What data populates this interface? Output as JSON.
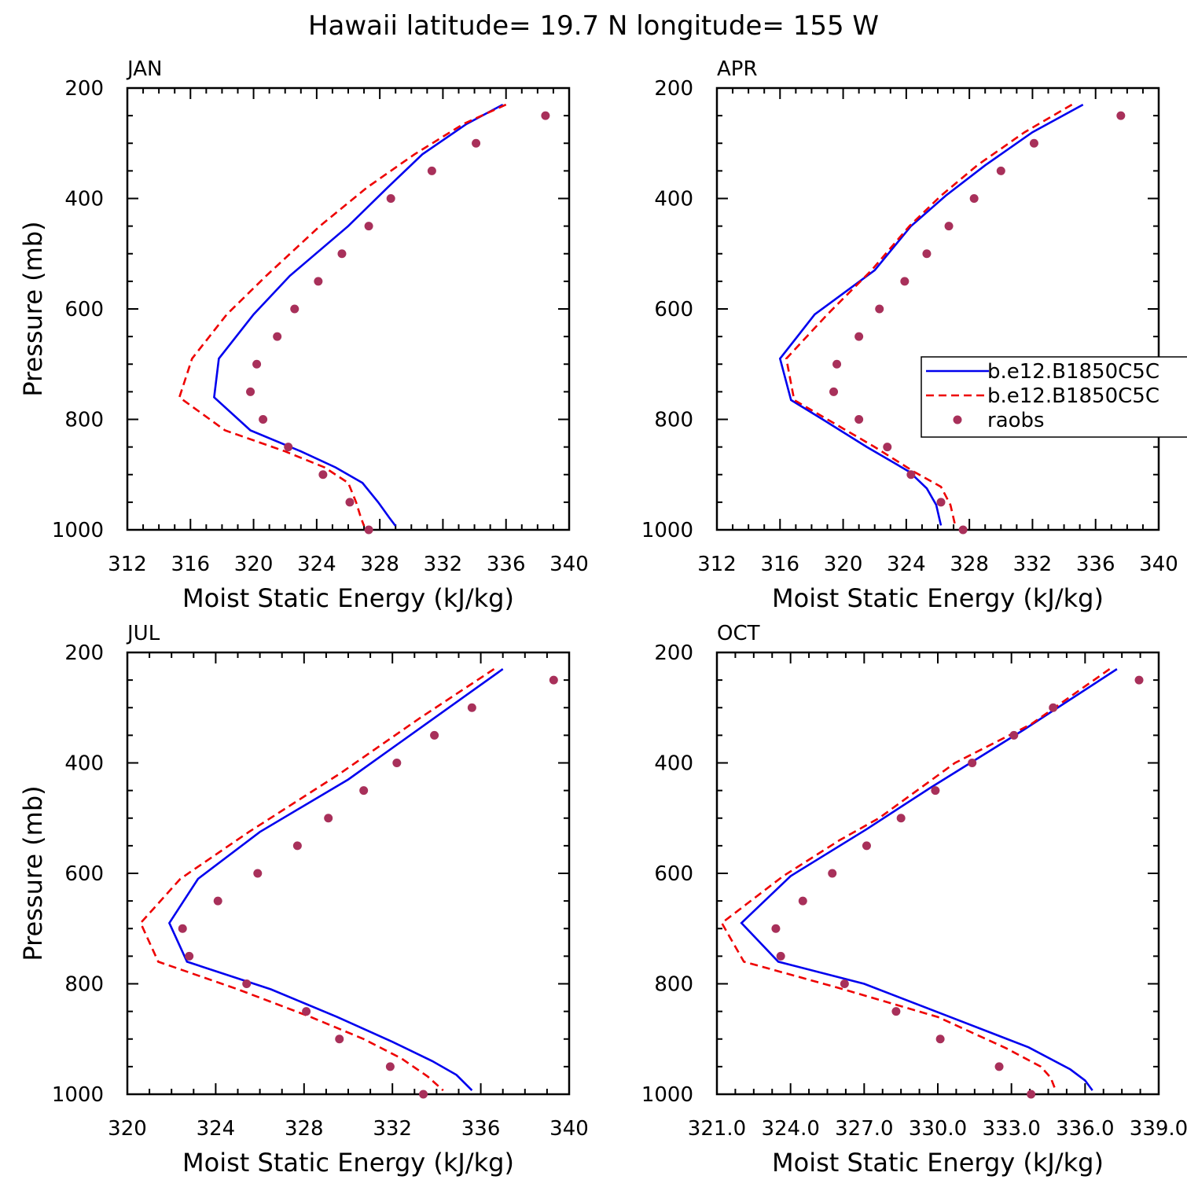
{
  "title": "Hawaii  latitude= 19.7 N longitude= 155 W",
  "legend": {
    "entries": [
      "b.e12.B1850C5C",
      "b.e12.B1850C5C",
      "raobs"
    ],
    "placement": "right side of APR panel (clipped at figure edge)"
  },
  "colors": {
    "model1": "#0000ee",
    "model2": "#ee0000",
    "raobs": "#a8305a"
  },
  "chart_data": [
    {
      "type": "line",
      "panel": "JAN",
      "xlabel": "Moist Static Energy (kJ/kg)",
      "ylabel": "Pressure (mb)",
      "xlim": [
        312,
        340
      ],
      "ylim": [
        200,
        1000
      ],
      "y_inverted": true,
      "xticks": [
        "312",
        "316",
        "320",
        "324",
        "328",
        "332",
        "336",
        "340"
      ],
      "yticks": [
        "200",
        "400",
        "600",
        "800",
        "1000"
      ],
      "series": [
        {
          "name": "b.e12.B1850C5C",
          "style": "solid",
          "points": [
            [
              335.8,
              230
            ],
            [
              333.5,
              265
            ],
            [
              330.7,
              320
            ],
            [
              328.5,
              380
            ],
            [
              326,
              450
            ],
            [
              322.3,
              540
            ],
            [
              320,
              610
            ],
            [
              317.8,
              690
            ],
            [
              317.5,
              760
            ],
            [
              319.8,
              820
            ],
            [
              323,
              858
            ],
            [
              325.2,
              887
            ],
            [
              326.9,
              915
            ],
            [
              327.9,
              950
            ],
            [
              328.6,
              978
            ],
            [
              329,
              993
            ]
          ]
        },
        {
          "name": "b.e12.B1850C5C",
          "style": "dashed",
          "points": [
            [
              336,
              230
            ],
            [
              333.3,
              265
            ],
            [
              330.2,
              320
            ],
            [
              327.2,
              380
            ],
            [
              324.2,
              450
            ],
            [
              320.8,
              540
            ],
            [
              318.3,
              610
            ],
            [
              316.1,
              690
            ],
            [
              315.3,
              760
            ],
            [
              318.2,
              820
            ],
            [
              322,
              858
            ],
            [
              324.5,
              887
            ],
            [
              326,
              915
            ],
            [
              326.5,
              950
            ],
            [
              326.8,
              978
            ],
            [
              327,
              993
            ]
          ]
        },
        {
          "name": "raobs",
          "style": "markers",
          "points": [
            [
              338.5,
              250
            ],
            [
              334.1,
              300
            ],
            [
              331.3,
              350
            ],
            [
              328.7,
              400
            ],
            [
              327.3,
              450
            ],
            [
              325.6,
              500
            ],
            [
              324.1,
              550
            ],
            [
              322.6,
              600
            ],
            [
              321.5,
              650
            ],
            [
              320.2,
              700
            ],
            [
              319.8,
              750
            ],
            [
              320.6,
              800
            ],
            [
              322.2,
              850
            ],
            [
              324.4,
              900
            ],
            [
              326.1,
              950
            ],
            [
              327.3,
              1000
            ]
          ]
        }
      ]
    },
    {
      "type": "line",
      "panel": "APR",
      "xlabel": "Moist Static Energy (kJ/kg)",
      "ylabel": "",
      "xlim": [
        312,
        340
      ],
      "ylim": [
        200,
        1000
      ],
      "y_inverted": true,
      "xticks": [
        "312",
        "316",
        "320",
        "324",
        "328",
        "332",
        "336",
        "340"
      ],
      "yticks": [
        "200",
        "400",
        "600",
        "800",
        "1000"
      ],
      "series": [
        {
          "name": "b.e12.B1850C5C",
          "style": "solid",
          "points": [
            [
              335.2,
              230
            ],
            [
              332,
              280
            ],
            [
              329,
              340
            ],
            [
              326.5,
              395
            ],
            [
              324.3,
              450
            ],
            [
              322,
              530
            ],
            [
              318.2,
              610
            ],
            [
              316,
              690
            ],
            [
              316.7,
              765
            ],
            [
              318.7,
              800
            ],
            [
              321.5,
              850
            ],
            [
              324.2,
              895
            ],
            [
              325.3,
              925
            ],
            [
              325.9,
              955
            ],
            [
              326.2,
              992
            ]
          ]
        },
        {
          "name": "b.e12.B1850C5C",
          "style": "dashed",
          "points": [
            [
              334.5,
              230
            ],
            [
              331.5,
              280
            ],
            [
              328.5,
              340
            ],
            [
              326.2,
              395
            ],
            [
              324.2,
              450
            ],
            [
              321.8,
              530
            ],
            [
              319,
              610
            ],
            [
              316.4,
              690
            ],
            [
              316.9,
              765
            ],
            [
              319,
              800
            ],
            [
              322,
              850
            ],
            [
              324.5,
              895
            ],
            [
              326.2,
              922
            ],
            [
              326.8,
              955
            ],
            [
              327.1,
              992
            ]
          ]
        },
        {
          "name": "raobs",
          "style": "markers",
          "points": [
            [
              337.6,
              250
            ],
            [
              332.1,
              300
            ],
            [
              330,
              350
            ],
            [
              328.3,
              400
            ],
            [
              326.7,
              450
            ],
            [
              325.3,
              500
            ],
            [
              323.9,
              550
            ],
            [
              322.3,
              600
            ],
            [
              321,
              650
            ],
            [
              319.6,
              700
            ],
            [
              319.4,
              750
            ],
            [
              321,
              800
            ],
            [
              322.8,
              850
            ],
            [
              324.3,
              900
            ],
            [
              326.2,
              950
            ],
            [
              327.6,
              1000
            ]
          ]
        }
      ]
    },
    {
      "type": "line",
      "panel": "JUL",
      "xlabel": "Moist Static Energy (kJ/kg)",
      "ylabel": "Pressure (mb)",
      "xlim": [
        320,
        340
      ],
      "ylim": [
        200,
        1000
      ],
      "y_inverted": true,
      "xticks": [
        "320",
        "324",
        "328",
        "332",
        "336",
        "340"
      ],
      "yticks": [
        "200",
        "400",
        "600",
        "800",
        "1000"
      ],
      "series": [
        {
          "name": "b.e12.B1850C5C",
          "style": "solid",
          "points": [
            [
              337,
              230
            ],
            [
              333.5,
              330
            ],
            [
              330,
              430
            ],
            [
              326,
              525
            ],
            [
              323.2,
              610
            ],
            [
              321.9,
              690
            ],
            [
              322.7,
              760
            ],
            [
              326.5,
              810
            ],
            [
              329.5,
              860
            ],
            [
              332,
              905
            ],
            [
              333.8,
              940
            ],
            [
              334.9,
              965
            ],
            [
              335.6,
              993
            ]
          ]
        },
        {
          "name": "b.e12.B1850C5C",
          "style": "dashed",
          "points": [
            [
              336.6,
              230
            ],
            [
              333.2,
              320
            ],
            [
              329.6,
              420
            ],
            [
              325.5,
              525
            ],
            [
              322.4,
              610
            ],
            [
              320.6,
              690
            ],
            [
              321.4,
              760
            ],
            [
              325,
              810
            ],
            [
              328.3,
              860
            ],
            [
              330.7,
              900
            ],
            [
              332.4,
              935
            ],
            [
              333.6,
              968
            ],
            [
              334.3,
              993
            ]
          ]
        },
        {
          "name": "raobs",
          "style": "markers",
          "points": [
            [
              339.3,
              250
            ],
            [
              335.6,
              300
            ],
            [
              333.9,
              350
            ],
            [
              332.2,
              400
            ],
            [
              330.7,
              450
            ],
            [
              329.1,
              500
            ],
            [
              327.7,
              550
            ],
            [
              325.9,
              600
            ],
            [
              324.1,
              650
            ],
            [
              322.5,
              700
            ],
            [
              322.8,
              750
            ],
            [
              325.4,
              800
            ],
            [
              328.1,
              850
            ],
            [
              329.6,
              900
            ],
            [
              331.9,
              950
            ],
            [
              333.4,
              1000
            ]
          ]
        }
      ]
    },
    {
      "type": "line",
      "panel": "OCT",
      "xlabel": "Moist Static Energy (kJ/kg)",
      "ylabel": "",
      "xlim": [
        321,
        339
      ],
      "ylim": [
        200,
        1000
      ],
      "y_inverted": true,
      "xticks": [
        "321.0",
        "324.0",
        "327.0",
        "330.0",
        "333.0",
        "336.0",
        "339.0"
      ],
      "yticks": [
        "200",
        "400",
        "600",
        "800",
        "1000"
      ],
      "series": [
        {
          "name": "b.e12.B1850C5C",
          "style": "solid",
          "points": [
            [
              337.3,
              230
            ],
            [
              333.5,
              340
            ],
            [
              329.7,
              445
            ],
            [
              327.1,
              520
            ],
            [
              324,
              605
            ],
            [
              322,
              690
            ],
            [
              323.5,
              760
            ],
            [
              327,
              800
            ],
            [
              330.5,
              860
            ],
            [
              333.7,
              915
            ],
            [
              335.4,
              955
            ],
            [
              336,
              975
            ],
            [
              336.3,
              993
            ]
          ]
        },
        {
          "name": "b.e12.B1850C5C",
          "style": "dashed",
          "points": [
            [
              337,
              230
            ],
            [
              333.8,
              330
            ],
            [
              330.7,
              400
            ],
            [
              327.6,
              500
            ],
            [
              326,
              540
            ],
            [
              323.7,
              605
            ],
            [
              321.2,
              690
            ],
            [
              322.1,
              760
            ],
            [
              326,
              808
            ],
            [
              330,
              860
            ],
            [
              332.8,
              917
            ],
            [
              334.2,
              950
            ],
            [
              334.6,
              970
            ],
            [
              334.8,
              993
            ]
          ]
        },
        {
          "name": "raobs",
          "style": "markers",
          "points": [
            [
              338.2,
              250
            ],
            [
              334.7,
              300
            ],
            [
              333.1,
              350
            ],
            [
              331.4,
              400
            ],
            [
              329.9,
              450
            ],
            [
              328.5,
              500
            ],
            [
              327.1,
              550
            ],
            [
              325.7,
              600
            ],
            [
              324.5,
              650
            ],
            [
              323.4,
              700
            ],
            [
              323.6,
              750
            ],
            [
              326.2,
              800
            ],
            [
              328.3,
              850
            ],
            [
              330.1,
              900
            ],
            [
              332.5,
              950
            ],
            [
              333.8,
              1000
            ]
          ]
        }
      ]
    }
  ]
}
